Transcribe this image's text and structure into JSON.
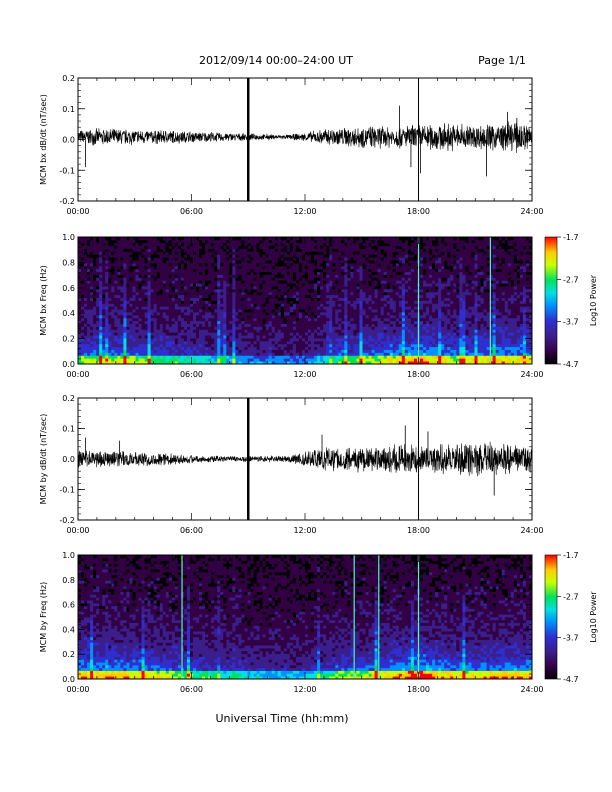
{
  "header": {
    "title": "2012/09/14  00:00–24:00 UT",
    "page": "Page 1/1"
  },
  "footer": {
    "xlabel": "Universal Time (hh:mm)"
  },
  "colors": {
    "trace": "#000000",
    "colorbar_stops": [
      "#000000",
      "#330044",
      "#3a1f8c",
      "#2f2fd0",
      "#0090ff",
      "#00e0e0",
      "#00e060",
      "#c8ff00",
      "#ffcc00",
      "#ff0000"
    ]
  },
  "chart_data": [
    {
      "type": "line",
      "title": "",
      "xlabel": "",
      "ylabel": "MCM bx dB/dt (nT/sec)",
      "xticks": [
        "00:00",
        "06:00",
        "12:00",
        "18:00",
        "24:00"
      ],
      "yticks": [
        "-0.2",
        "-0.1",
        "0.0",
        "0.1",
        "0.2"
      ],
      "xlim": [
        0,
        24
      ],
      "ylim": [
        -0.2,
        0.2
      ],
      "vertical_lines_hours": [
        9.0,
        18.0
      ],
      "envelope": {
        "hours": [
          0,
          1,
          2,
          3,
          4,
          5,
          6,
          7,
          8,
          9,
          10,
          11,
          12,
          13,
          14,
          15,
          16,
          17,
          18,
          19,
          20,
          21,
          22,
          23,
          24
        ],
        "amplitude": [
          0.025,
          0.03,
          0.03,
          0.028,
          0.025,
          0.025,
          0.02,
          0.018,
          0.015,
          0.012,
          0.01,
          0.008,
          0.015,
          0.03,
          0.035,
          0.04,
          0.04,
          0.04,
          0.045,
          0.05,
          0.05,
          0.045,
          0.05,
          0.055,
          0.05
        ]
      },
      "spikes": [
        {
          "x": 0.4,
          "y": -0.09
        },
        {
          "x": 17.6,
          "y": -0.09
        },
        {
          "x": 17.0,
          "y": 0.11
        },
        {
          "x": 18.1,
          "y": -0.11
        },
        {
          "x": 21.6,
          "y": -0.12
        },
        {
          "x": 22.7,
          "y": 0.09
        },
        {
          "x": 23.2,
          "y": 0.07
        }
      ]
    },
    {
      "type": "heatmap",
      "title": "",
      "xlabel": "",
      "ylabel": "MCM bx Freq (Hz)",
      "xticks": [
        "00:00",
        "06:00",
        "12:00",
        "18:00",
        "24:00"
      ],
      "yticks": [
        "0.0",
        "0.2",
        "0.4",
        "0.6",
        "0.8",
        "1.0"
      ],
      "xlim": [
        0,
        24
      ],
      "ylim": [
        0,
        1.0
      ],
      "colorbar": {
        "label": "Log10 Power",
        "ticks": [
          "-1.7",
          "-2.7",
          "-3.7",
          "-4.7"
        ],
        "range": [
          -4.7,
          -1.7
        ]
      },
      "activity_hours": [
        0,
        2,
        4,
        6,
        8,
        10,
        12,
        14,
        16,
        18,
        20,
        22,
        24
      ],
      "activity_level": [
        0.6,
        0.65,
        0.55,
        0.45,
        0.35,
        0.25,
        0.25,
        0.55,
        0.65,
        0.85,
        0.65,
        0.75,
        0.7
      ],
      "vertical_streaks_hours": [
        18.0,
        21.8
      ]
    },
    {
      "type": "line",
      "title": "",
      "xlabel": "",
      "ylabel": "MCM by dB/dt (nT/sec)",
      "xticks": [
        "00:00",
        "06:00",
        "12:00",
        "18:00",
        "24:00"
      ],
      "yticks": [
        "-0.2",
        "-0.1",
        "0.0",
        "0.1",
        "0.2"
      ],
      "xlim": [
        0,
        24
      ],
      "ylim": [
        -0.2,
        0.2
      ],
      "vertical_lines_hours": [
        9.0,
        18.0
      ],
      "envelope": {
        "hours": [
          0,
          1,
          2,
          3,
          4,
          5,
          6,
          7,
          8,
          9,
          10,
          11,
          12,
          13,
          14,
          15,
          16,
          17,
          18,
          19,
          20,
          21,
          22,
          23,
          24
        ],
        "amplitude": [
          0.035,
          0.03,
          0.03,
          0.028,
          0.025,
          0.02,
          0.015,
          0.012,
          0.01,
          0.01,
          0.012,
          0.012,
          0.03,
          0.045,
          0.045,
          0.045,
          0.05,
          0.055,
          0.05,
          0.05,
          0.055,
          0.06,
          0.06,
          0.055,
          0.05
        ]
      },
      "spikes": [
        {
          "x": 0.4,
          "y": 0.07
        },
        {
          "x": 2.2,
          "y": 0.06
        },
        {
          "x": 12.9,
          "y": 0.08
        },
        {
          "x": 17.3,
          "y": 0.11
        },
        {
          "x": 18.0,
          "y": -0.12
        },
        {
          "x": 18.5,
          "y": 0.09
        },
        {
          "x": 22.0,
          "y": -0.12
        }
      ]
    },
    {
      "type": "heatmap",
      "title": "",
      "xlabel": "",
      "ylabel": "MCM by Freq (Hz)",
      "xticks": [
        "00:00",
        "06:00",
        "12:00",
        "18:00",
        "24:00"
      ],
      "yticks": [
        "0.0",
        "0.2",
        "0.4",
        "0.6",
        "0.8",
        "1.0"
      ],
      "xlim": [
        0,
        24
      ],
      "ylim": [
        0,
        1.0
      ],
      "colorbar": {
        "label": "Log10 Power",
        "ticks": [
          "-1.7",
          "-2.7",
          "-3.7",
          "-4.7"
        ],
        "range": [
          -4.7,
          -1.7
        ]
      },
      "activity_hours": [
        0,
        2,
        4,
        6,
        8,
        10,
        12,
        14,
        16,
        18,
        20,
        22,
        24
      ],
      "activity_level": [
        0.8,
        0.75,
        0.7,
        0.55,
        0.45,
        0.35,
        0.35,
        0.6,
        0.7,
        0.9,
        0.7,
        0.75,
        0.8
      ],
      "vertical_streaks_hours": [
        5.5,
        14.6,
        15.9,
        18.0
      ]
    }
  ]
}
